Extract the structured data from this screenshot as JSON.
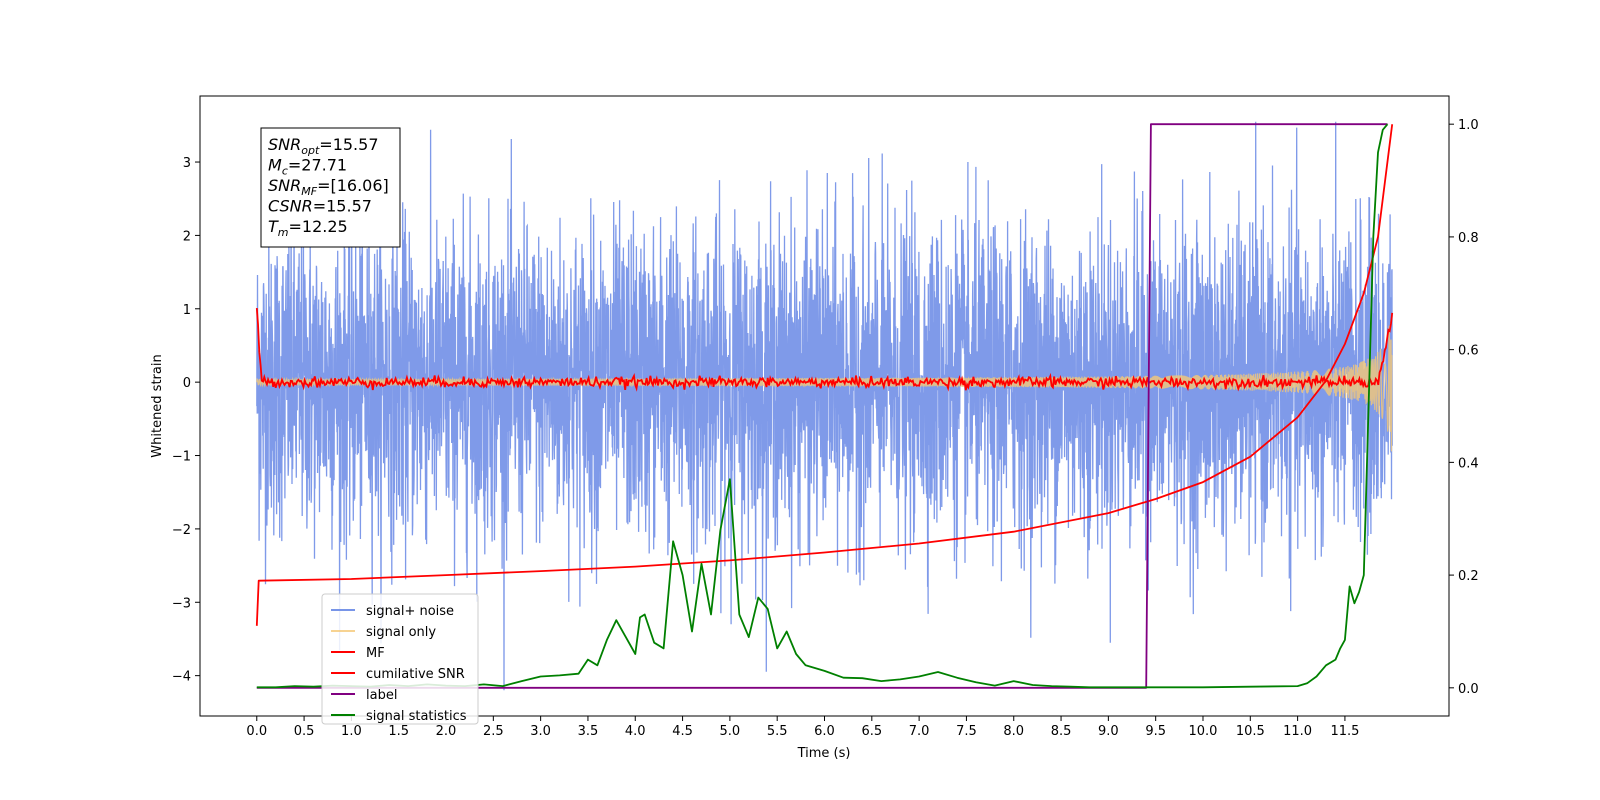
{
  "chart_data": {
    "type": "line",
    "xlabel": "Time (s)",
    "ylabel": "Whitened strain",
    "xlim": [
      -0.6,
      12.6
    ],
    "xticks": [
      "0.0",
      "0.5",
      "1.0",
      "1.5",
      "2.0",
      "2.5",
      "3.0",
      "3.5",
      "4.0",
      "4.5",
      "5.0",
      "5.5",
      "6.0",
      "6.5",
      "7.0",
      "7.5",
      "8.0",
      "8.5",
      "9.0",
      "9.5",
      "10.0",
      "10.5",
      "11.0",
      "11.5"
    ],
    "ylim_left": [
      -4.55,
      3.9
    ],
    "yticks_left": [
      "−4",
      "−3",
      "−2",
      "−1",
      "0",
      "1",
      "2",
      "3"
    ],
    "ylim_right": [
      -0.05,
      1.05
    ],
    "yticks_right": [
      "0.0",
      "0.2",
      "0.4",
      "0.6",
      "0.8",
      "1.0"
    ],
    "legend_position": "lower-left",
    "annotation": [
      {
        "name": "SNR",
        "sub": "opt",
        "value": "=15.57"
      },
      {
        "name": "M",
        "sub": "c",
        "value": "=27.71"
      },
      {
        "name": "SNR",
        "sub": "MF",
        "value": "=[16.06]"
      },
      {
        "name": "CSNR",
        "sub": "",
        "value": "=15.57"
      },
      {
        "name": "T",
        "sub": "m",
        "value": "=12.25"
      }
    ],
    "series": [
      {
        "name": "signal+ noise",
        "axis": "left",
        "color": "#7895e8",
        "note_amplitude": 1.2,
        "x_range": [
          0,
          12.0
        ],
        "values": []
      },
      {
        "name": "signal only",
        "axis": "left",
        "color": "#f5c877",
        "x_range": [
          0,
          12.0
        ],
        "amplitude_start": 0.02,
        "amplitude_end": 1.2
      },
      {
        "name": "MF",
        "axis": "left",
        "color": "#ff0000",
        "x_range": [
          0,
          12.0
        ],
        "start_value": 1.0,
        "baseline": 0.0
      },
      {
        "name": "cumilative SNR",
        "axis": "right",
        "color": "#ff0000",
        "x": [
          0.0,
          0.02,
          1.0,
          2.0,
          3.0,
          4.0,
          5.0,
          6.0,
          7.0,
          8.0,
          9.0,
          9.5,
          10.0,
          10.5,
          11.0,
          11.3,
          11.5,
          11.7,
          11.85,
          12.0
        ],
        "y": [
          0.11,
          0.19,
          0.193,
          0.2,
          0.207,
          0.215,
          0.226,
          0.24,
          0.256,
          0.277,
          0.31,
          0.335,
          0.365,
          0.41,
          0.48,
          0.545,
          0.61,
          0.7,
          0.8,
          1.0
        ]
      },
      {
        "name": "label",
        "axis": "right",
        "color": "#800080",
        "x": [
          0.0,
          9.4,
          9.45,
          11.95
        ],
        "y": [
          0.0,
          0.0,
          1.0,
          1.0
        ]
      },
      {
        "name": "signal statistics",
        "axis": "right",
        "color": "#008000",
        "x": [
          0.0,
          0.2,
          0.4,
          0.6,
          0.8,
          1.0,
          1.2,
          1.4,
          1.6,
          1.8,
          2.0,
          2.2,
          2.4,
          2.6,
          2.8,
          3.0,
          3.2,
          3.4,
          3.5,
          3.6,
          3.7,
          3.8,
          3.9,
          4.0,
          4.05,
          4.1,
          4.2,
          4.3,
          4.4,
          4.5,
          4.6,
          4.7,
          4.8,
          4.9,
          5.0,
          5.1,
          5.2,
          5.3,
          5.4,
          5.5,
          5.6,
          5.7,
          5.8,
          6.0,
          6.2,
          6.4,
          6.6,
          6.8,
          7.0,
          7.2,
          7.4,
          7.6,
          7.8,
          8.0,
          8.2,
          8.4,
          8.6,
          8.8,
          9.0,
          9.4,
          10.0,
          10.5,
          11.0,
          11.1,
          11.2,
          11.3,
          11.4,
          11.45,
          11.5,
          11.55,
          11.6,
          11.65,
          11.7,
          11.75,
          11.8,
          11.85,
          11.9,
          11.95
        ],
        "y": [
          0.001,
          0.001,
          0.003,
          0.002,
          0.004,
          0.003,
          0.002,
          0.005,
          0.003,
          0.006,
          0.004,
          0.003,
          0.006,
          0.003,
          0.012,
          0.02,
          0.022,
          0.025,
          0.05,
          0.04,
          0.085,
          0.12,
          0.09,
          0.06,
          0.125,
          0.13,
          0.08,
          0.07,
          0.26,
          0.2,
          0.1,
          0.22,
          0.13,
          0.28,
          0.37,
          0.13,
          0.09,
          0.16,
          0.14,
          0.07,
          0.1,
          0.06,
          0.04,
          0.03,
          0.018,
          0.017,
          0.012,
          0.015,
          0.02,
          0.028,
          0.018,
          0.01,
          0.004,
          0.012,
          0.005,
          0.003,
          0.002,
          0.001,
          0.001,
          0.001,
          0.001,
          0.002,
          0.003,
          0.008,
          0.02,
          0.04,
          0.05,
          0.07,
          0.085,
          0.18,
          0.15,
          0.17,
          0.2,
          0.5,
          0.8,
          0.95,
          0.99,
          1.0
        ]
      }
    ]
  }
}
